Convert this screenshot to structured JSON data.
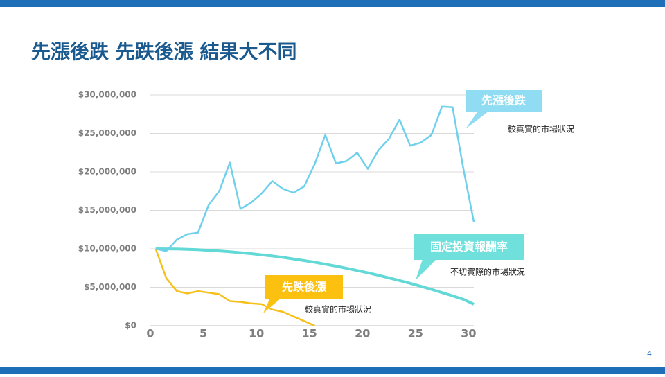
{
  "chart_data": {
    "type": "line",
    "title": "先漲後跌   先跌後漲  結果大不同",
    "x": [
      0.5,
      1.5,
      2.5,
      3.5,
      4.5,
      5.5,
      6.5,
      7.5,
      8.5,
      9.5,
      10.5,
      11.5,
      12.5,
      13.5,
      14.5,
      15.5,
      16.5,
      17.5,
      18.5,
      19.5,
      20.5,
      21.5,
      22.5,
      23.5,
      24.5,
      25.5,
      26.5,
      27.5,
      28.5,
      29.5,
      30.5
    ],
    "series": [
      {
        "name": "先漲後跌",
        "color": "#6fd0ec",
        "values": [
          10000000,
          9700000,
          11200000,
          11900000,
          12100000,
          15700000,
          17500000,
          21200000,
          15200000,
          16000000,
          17200000,
          18800000,
          17800000,
          17300000,
          18100000,
          21000000,
          24800000,
          21100000,
          21400000,
          22500000,
          20400000,
          22800000,
          24300000,
          26800000,
          23400000,
          23800000,
          24800000,
          28500000,
          28400000,
          20500000,
          13500000
        ]
      },
      {
        "name": "固定投資報酬率",
        "color": "#62d9d6",
        "values": [
          10000000,
          9990000,
          9970000,
          9930000,
          9880000,
          9800000,
          9720000,
          9620000,
          9500000,
          9370000,
          9220000,
          9060000,
          8880000,
          8680000,
          8470000,
          8250000,
          8000000,
          7750000,
          7470000,
          7180000,
          6880000,
          6560000,
          6220000,
          5870000,
          5510000,
          5130000,
          4730000,
          4310000,
          3880000,
          3440000,
          2800000
        ]
      },
      {
        "name": "先跌後漲",
        "color": "#f5c01a",
        "values": [
          10000000,
          6200000,
          4500000,
          4200000,
          4500000,
          4300000,
          4100000,
          3200000,
          3100000,
          2900000,
          2800000,
          2100000,
          1800000,
          1200000,
          600000,
          0,
          null,
          null,
          null,
          null,
          null,
          null,
          null,
          null,
          null,
          null,
          null,
          null,
          null,
          null,
          null
        ]
      }
    ],
    "annotations": [
      "較真實的市場狀況",
      "不切實際的市場狀況",
      "較真實的市場狀況"
    ],
    "xlim": [
      0,
      30.5
    ],
    "xticks": [
      0,
      5,
      10,
      15,
      20,
      25,
      30
    ],
    "ylim": [
      0,
      30000000
    ],
    "yticks": [
      {
        "value": 0,
        "label": "$0"
      },
      {
        "value": 5000000,
        "label": "$5,000,000"
      },
      {
        "value": 10000000,
        "label": "$10,000,000"
      },
      {
        "value": 15000000,
        "label": "$15,000,000"
      },
      {
        "value": 20000000,
        "label": "$20,000,000"
      },
      {
        "value": 25000000,
        "label": "$25,000,000"
      },
      {
        "value": 30000000,
        "label": "$30,000,000"
      }
    ],
    "grid": true
  },
  "page_number": "4"
}
